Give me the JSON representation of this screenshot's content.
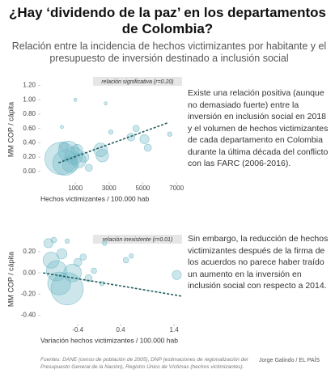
{
  "title": "¿Hay ‘dividendo de la paz’ en los departamentos de Colombia?",
  "subtitle": "Relación entre la incidencia de hechos victimizantes por habitante y el presupuesto de inversión destinado a inclusión social",
  "paragraphs": [
    "Existe una relación positiva (aunque no demasiado fuerte) entre la inversión en inclusión social en 2018 y el volumen de hechos victimizantes de cada departamento en Colombia durante la última década del conflicto con las FARC (2006-2016).",
    "Sin embargo, la reducción de hechos victimizantes después de la firma de los acuerdos no parece haber traído un aumento en la inversión en inclusión social con respecto a 2014."
  ],
  "source": "Fuentes: DANE (censo de población de 2005), DNP (estimaciones de regionalización del Presupuesto General de la Nación), Registro Único de Víctimas (hechos victimizantes).",
  "credit": "Jorge Galindo / EL PAÍS",
  "chart_data": [
    {
      "type": "scatter",
      "annotation": "relación significativa (r=0.20)",
      "xlabel": "Hechos victimizantes / 100.000 hab",
      "ylabel": "MM COP / cápita",
      "color": "#6fb8c7",
      "x": [
        150,
        400,
        600,
        900,
        1100,
        1200,
        300,
        1500,
        2500,
        2600,
        1800,
        4600,
        4300,
        5100,
        5300,
        3100,
        2800,
        1000,
        200,
        6600,
        700
      ],
      "values": [
        0.18,
        0.12,
        0.28,
        0.22,
        0.3,
        0.15,
        0.35,
        0.2,
        0.3,
        0.22,
        0.05,
        0.6,
        0.48,
        0.45,
        0.33,
        0.55,
        0.95,
        1.0,
        0.62,
        0.52,
        0.1
      ],
      "sizes": [
        100,
        60,
        40,
        30,
        12,
        20,
        8,
        10,
        18,
        15,
        5,
        4,
        6,
        8,
        5,
        2,
        1,
        1,
        1,
        2,
        25
      ],
      "trend": {
        "x": [
          0,
          6500
        ],
        "y": [
          0.12,
          0.68
        ]
      },
      "xlim": [
        -1070,
        7330
      ],
      "ylim": [
        -0.15,
        1.32
      ],
      "xticks": [
        1000,
        3000,
        5000,
        7000
      ],
      "yticks": [
        {
          "value": 1.2,
          "label": "1.20"
        },
        {
          "value": 1.0,
          "label": "1.00"
        },
        {
          "value": 0.8,
          "label": "0.80"
        },
        {
          "value": 0.6,
          "label": "0.60"
        },
        {
          "value": 0.4,
          "label": "0.40"
        },
        {
          "value": 0.2,
          "label": "0.20"
        },
        {
          "value": 0,
          "label": "0.00"
        }
      ]
    },
    {
      "type": "scatter",
      "annotation": "relación inexistente (r=0.01)",
      "xlabel": "Variación hechos victimizantes / 100.000 hab",
      "ylabel": "MM COP / cápita",
      "color": "#6fb8c7",
      "x": [
        -0.95,
        -0.9,
        -0.8,
        -0.75,
        -0.6,
        -0.5,
        -0.7,
        -0.4,
        -0.3,
        -0.2,
        -0.6,
        -0.85,
        0.1,
        0.5,
        0.6,
        -0.1,
        1.45,
        0.05
      ],
      "values": [
        0.28,
        0.12,
        0.02,
        -0.1,
        -0.15,
        0.0,
        0.18,
        0.1,
        0.15,
        -0.05,
        0.3,
        0.31,
        0.28,
        0.12,
        0.16,
        0.02,
        -0.02,
        -0.1
      ],
      "sizes": [
        8,
        25,
        40,
        50,
        100,
        30,
        10,
        6,
        4,
        5,
        2,
        3,
        2,
        3,
        2,
        3,
        8,
        2
      ],
      "trend": {
        "x": [
          -1.05,
          1.55
        ],
        "y": [
          0.0,
          -0.22
        ]
      },
      "xlim": [
        -1.1,
        1.55
      ],
      "ylim": [
        -0.48,
        0.36
      ],
      "xticks": [
        -0.4,
        0.4,
        1.4
      ],
      "yticks": [
        {
          "value": 0.2,
          "label": "0.20"
        },
        {
          "value": 0,
          "label": "0.00"
        },
        {
          "value": -0.2,
          "label": "-0.20"
        },
        {
          "value": -0.4,
          "label": "-0.40"
        }
      ]
    }
  ]
}
